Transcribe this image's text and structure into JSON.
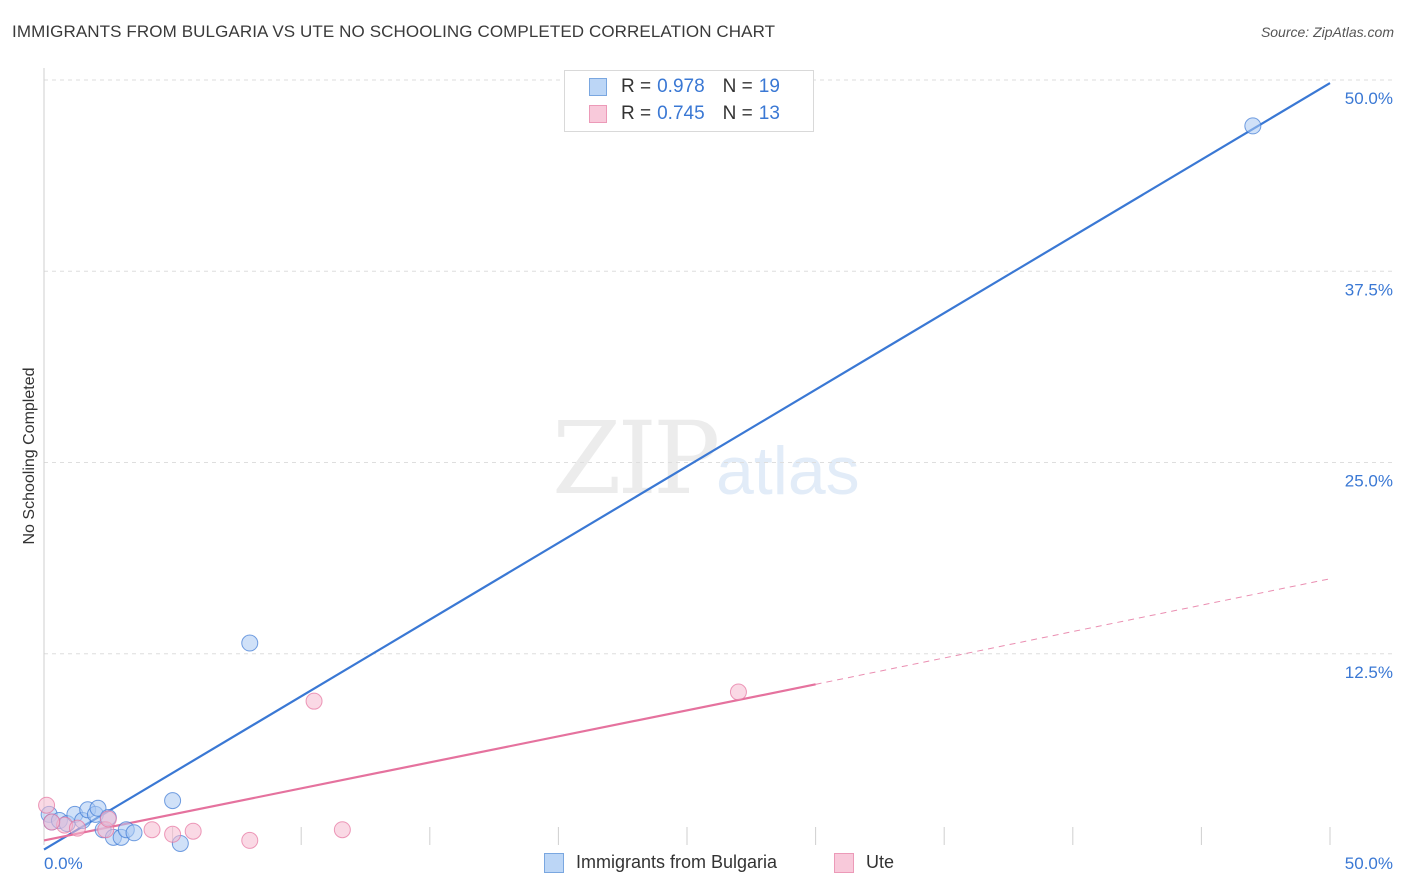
{
  "title": "IMMIGRANTS FROM BULGARIA VS UTE NO SCHOOLING COMPLETED CORRELATION CHART",
  "source": "Source: ZipAtlas.com",
  "watermark": {
    "zip": "ZIP",
    "atlas": "atlas"
  },
  "legend": {
    "rows": [
      {
        "r_label": "R = ",
        "r_value": "0.978",
        "n_label": "N = ",
        "n_value": "19"
      },
      {
        "r_label": "R = ",
        "r_value": "0.745",
        "n_label": "N = ",
        "n_value": "13"
      }
    ]
  },
  "chart_data": {
    "type": "scatter",
    "title": "IMMIGRANTS FROM BULGARIA VS UTE NO SCHOOLING COMPLETED CORRELATION CHART",
    "xlabel": "",
    "ylabel": "No Schooling Completed",
    "xlim": [
      0,
      50
    ],
    "ylim": [
      0,
      50
    ],
    "x_tick_labels": [
      "0.0%",
      "50.0%"
    ],
    "y_ticks": [
      12.5,
      25.0,
      37.5,
      50.0
    ],
    "y_tick_labels": [
      "12.5%",
      "25.0%",
      "37.5%",
      "50.0%"
    ],
    "grid": true,
    "colors": {
      "blue": "#3a78d4",
      "blue_fill": "#a9c8f2",
      "pink": "#e5729e",
      "pink_fill": "#f5b9cf"
    },
    "series": [
      {
        "name": "Immigrants from Bulgaria",
        "color": "#3a78d4",
        "points": [
          {
            "x": 0.2,
            "y": 2.0
          },
          {
            "x": 0.3,
            "y": 1.5
          },
          {
            "x": 0.6,
            "y": 1.6
          },
          {
            "x": 0.9,
            "y": 1.4
          },
          {
            "x": 1.2,
            "y": 2.0
          },
          {
            "x": 1.5,
            "y": 1.6
          },
          {
            "x": 1.7,
            "y": 2.3
          },
          {
            "x": 2.0,
            "y": 2.0
          },
          {
            "x": 2.1,
            "y": 2.4
          },
          {
            "x": 2.3,
            "y": 1.0
          },
          {
            "x": 2.5,
            "y": 1.8
          },
          {
            "x": 2.7,
            "y": 0.5
          },
          {
            "x": 3.0,
            "y": 0.5
          },
          {
            "x": 3.2,
            "y": 1.0
          },
          {
            "x": 3.5,
            "y": 0.8
          },
          {
            "x": 5.0,
            "y": 2.9
          },
          {
            "x": 5.3,
            "y": 0.1
          },
          {
            "x": 8.0,
            "y": 13.2
          },
          {
            "x": 47.0,
            "y": 47.0
          }
        ],
        "trend": {
          "x0": 0.0,
          "y0": -0.3,
          "x1": 50.0,
          "y1": 49.8
        }
      },
      {
        "name": "Ute",
        "color": "#e5729e",
        "points": [
          {
            "x": 0.1,
            "y": 2.6
          },
          {
            "x": 0.8,
            "y": 1.3
          },
          {
            "x": 1.3,
            "y": 1.1
          },
          {
            "x": 2.4,
            "y": 1.0
          },
          {
            "x": 2.5,
            "y": 1.7
          },
          {
            "x": 4.2,
            "y": 1.0
          },
          {
            "x": 5.0,
            "y": 0.7
          },
          {
            "x": 5.8,
            "y": 0.9
          },
          {
            "x": 8.0,
            "y": 0.3
          },
          {
            "x": 10.5,
            "y": 9.4
          },
          {
            "x": 11.6,
            "y": 1.0
          },
          {
            "x": 27.0,
            "y": 10.0
          },
          {
            "x": 0.3,
            "y": 1.5
          }
        ],
        "trend": {
          "x0": 0.0,
          "y0": 0.3,
          "x1": 30.0,
          "y1": 10.5
        },
        "trend_extension": {
          "x0": 30.0,
          "y0": 10.5,
          "x1": 50.0,
          "y1": 17.4
        }
      }
    ]
  },
  "bottom_legend": [
    "Immigrants from Bulgaria",
    "Ute"
  ]
}
